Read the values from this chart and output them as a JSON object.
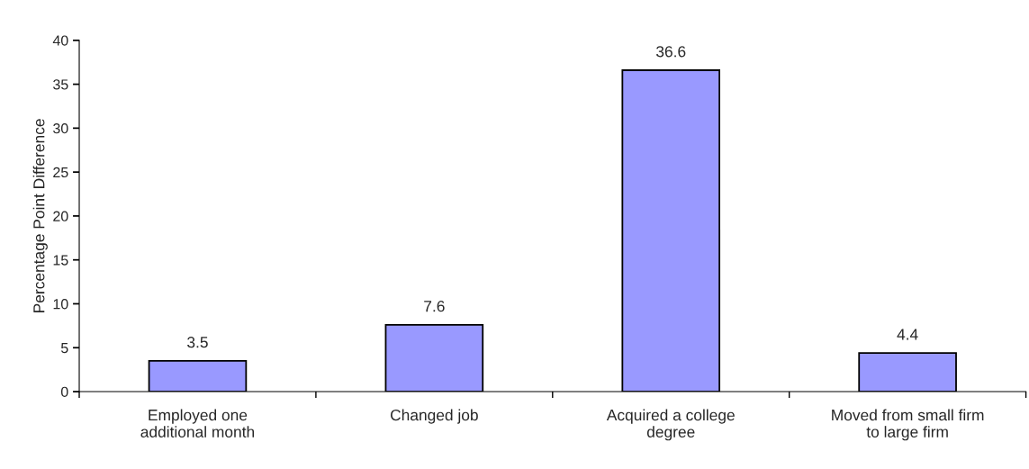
{
  "chart_data": {
    "type": "bar",
    "categories": [
      "Employed one\nadditional month",
      "Changed job",
      "Acquired a college\ndegree",
      "Moved from small firm\nto large firm"
    ],
    "values": [
      3.5,
      7.6,
      36.6,
      4.4
    ],
    "color": "#9999ff",
    "ylabel": "Percentage Point Difference",
    "ylim": [
      0,
      40
    ],
    "yticks": [
      0,
      5,
      10,
      15,
      20,
      25,
      30,
      35,
      40
    ],
    "data_labels": true,
    "grid": false,
    "legend": false
  }
}
